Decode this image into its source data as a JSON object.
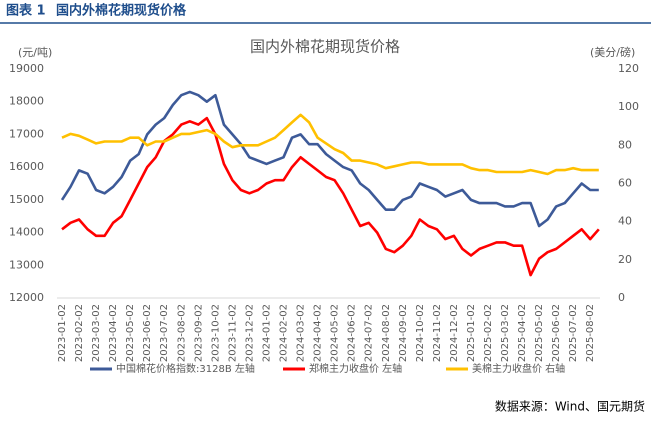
{
  "chart_data": {
    "type": "line",
    "figure_label": "图表 1",
    "heading": "国内外棉花期现货价格",
    "title": "国内外棉花期现货价格",
    "y_label": "(元/吨)",
    "y2_label": "(美分/磅)",
    "source": "数据来源：Wind、国元期货",
    "categories": [
      "2023-01-02",
      null,
      "2023-02-02",
      null,
      "2023-03-02",
      null,
      "2023-04-02",
      null,
      "2023-05-02",
      null,
      "2023-06-02",
      null,
      "2023-07-02",
      null,
      "2023-08-02",
      null,
      "2023-09-02",
      null,
      "2023-10-02",
      null,
      "2023-11-02",
      null,
      "2023-12-02",
      null,
      "2024-01-02",
      null,
      "2024-02-02",
      null,
      "2024-03-02",
      null,
      "2024-04-02",
      null,
      "2024-05-02",
      null,
      "2024-06-02",
      null,
      "2024-07-02",
      null,
      "2024-08-02",
      null,
      "2024-09-02",
      null,
      "2024-10-02",
      null,
      "2024-11-02",
      null,
      "2024-12-02",
      null,
      "2025-01-02",
      null,
      "2025-02-02",
      null,
      "2025-03-02",
      null,
      "2025-04-02",
      null,
      "2025-05-02",
      null,
      "2025-06-02",
      null,
      "2025-07-02",
      null,
      "2025-08-02",
      null
    ],
    "series": [
      {
        "name": "中国棉花价格指数:3128B 左轴",
        "color": "#3d5a98",
        "axis": "y",
        "values": [
          15000,
          15400,
          15900,
          15800,
          15300,
          15200,
          15400,
          15700,
          16200,
          16400,
          17000,
          17300,
          17500,
          17900,
          18200,
          18300,
          18200,
          18000,
          18200,
          17300,
          17000,
          16700,
          16300,
          16200,
          16100,
          16200,
          16300,
          16900,
          17000,
          16700,
          16700,
          16400,
          16200,
          16000,
          15900,
          15500,
          15300,
          15000,
          14700,
          14700,
          15000,
          15100,
          15500,
          15400,
          15300,
          15100,
          15200,
          15300,
          15000,
          14900,
          14900,
          14900,
          14800,
          14800,
          14900,
          14900,
          14200,
          14400,
          14800,
          14900,
          15200,
          15500,
          15300,
          15300
        ]
      },
      {
        "name": "郑棉主力收盘价 左轴",
        "color": "#ff0000",
        "axis": "y",
        "values": [
          14100,
          14300,
          14400,
          14100,
          13900,
          13900,
          14300,
          14500,
          15000,
          15500,
          16000,
          16300,
          16800,
          17000,
          17300,
          17400,
          17300,
          17500,
          17000,
          16100,
          15600,
          15300,
          15200,
          15300,
          15500,
          15600,
          15600,
          16000,
          16300,
          16100,
          15900,
          15700,
          15600,
          15200,
          14700,
          14200,
          14300,
          14000,
          13500,
          13400,
          13600,
          13900,
          14400,
          14200,
          14100,
          13800,
          13900,
          13500,
          13300,
          13500,
          13600,
          13700,
          13700,
          13600,
          13600,
          12700,
          13200,
          13400,
          13500,
          13700,
          13900,
          14100,
          13800,
          14100
        ]
      },
      {
        "name": "美棉主力收盘价 右轴",
        "color": "#ffc000",
        "axis": "y2",
        "values": [
          84,
          86,
          85,
          83,
          81,
          82,
          82,
          82,
          84,
          84,
          80,
          82,
          82,
          84,
          86,
          86,
          87,
          88,
          86,
          82,
          79,
          80,
          80,
          80,
          82,
          84,
          88,
          92,
          96,
          92,
          84,
          81,
          78,
          76,
          72,
          72,
          71,
          70,
          68,
          69,
          70,
          71,
          71,
          70,
          70,
          70,
          70,
          70,
          68,
          67,
          67,
          66,
          66,
          66,
          66,
          67,
          66,
          65,
          67,
          67,
          68,
          67,
          67,
          67
        ]
      }
    ],
    "ylim": [
      12000,
      19000
    ],
    "yticks": [
      12000,
      13000,
      14000,
      15000,
      16000,
      17000,
      18000,
      19000
    ],
    "y2lim": [
      0,
      120
    ],
    "y2ticks": [
      0,
      20,
      40,
      60,
      80,
      100,
      120
    ],
    "grid": false
  }
}
